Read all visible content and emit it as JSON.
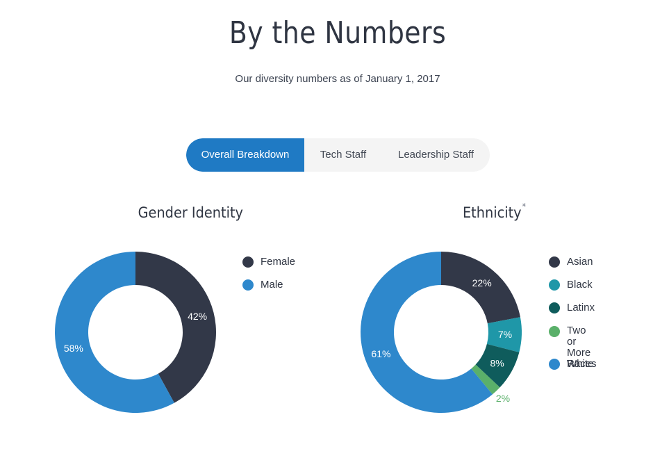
{
  "header": {
    "title": "By the Numbers",
    "subtitle": "Our diversity numbers as of January 1, 2017"
  },
  "tabs": [
    {
      "label": "Overall Breakdown",
      "active": true
    },
    {
      "label": "Tech Staff",
      "active": false
    },
    {
      "label": "Leadership Staff",
      "active": false
    }
  ],
  "chart_data": [
    {
      "type": "pie",
      "title": "Gender Identity",
      "categories": [
        "Female",
        "Male"
      ],
      "values": [
        42,
        58
      ],
      "labels": [
        "42%",
        "58%"
      ],
      "colors": [
        "#323848",
        "#2e88cc"
      ],
      "legend": "right"
    },
    {
      "type": "pie",
      "title": "Ethnicity",
      "title_marker": "*",
      "categories": [
        "Asian",
        "Black",
        "Latinx",
        "Two or\nMore Races",
        "White"
      ],
      "values": [
        22,
        7,
        8,
        2,
        61
      ],
      "labels": [
        "22%",
        "7%",
        "8%",
        "2%",
        "61%"
      ],
      "colors": [
        "#323848",
        "#1f97a8",
        "#0f5c5c",
        "#5ab06a",
        "#2e88cc"
      ],
      "legend": "right"
    }
  ]
}
